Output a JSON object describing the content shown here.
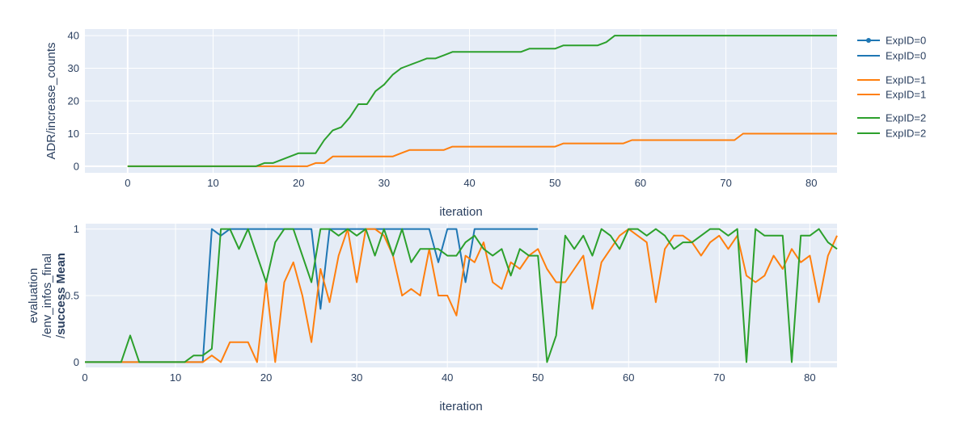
{
  "chart_data": [
    {
      "type": "line",
      "xlabel": "iteration",
      "ylabel": "ADR/increase_counts",
      "xlim": [
        -5,
        83
      ],
      "ylim": [
        -2,
        42
      ],
      "xticks": [
        0,
        10,
        20,
        30,
        40,
        50,
        60,
        70,
        80
      ],
      "yticks": [
        0,
        10,
        20,
        30,
        40
      ],
      "grid": true,
      "series": [
        {
          "name": "ExpID=1",
          "color": "#ff7f0e",
          "x": [
            0,
            20,
            21,
            22,
            23,
            24,
            30,
            31,
            32,
            33,
            37,
            38,
            50,
            51,
            58,
            59,
            71,
            72,
            83
          ],
          "y": [
            0,
            0,
            0,
            1,
            1,
            3,
            3,
            3,
            4,
            5,
            5,
            6,
            6,
            7,
            7,
            8,
            8,
            10,
            10
          ]
        },
        {
          "name": "ExpID=2",
          "color": "#2ca02c",
          "x": [
            0,
            15,
            16,
            17,
            20,
            21,
            22,
            23,
            24,
            25,
            26,
            27,
            28,
            29,
            30,
            31,
            32,
            33,
            34,
            35,
            36,
            37,
            38,
            39,
            40,
            41,
            42,
            43,
            44,
            45,
            46,
            47,
            48,
            49,
            50,
            51,
            52,
            53,
            54,
            55,
            56,
            57,
            83
          ],
          "y": [
            0,
            0,
            1,
            1,
            4,
            4,
            4,
            8,
            11,
            12,
            15,
            19,
            19,
            23,
            25,
            28,
            30,
            31,
            32,
            33,
            33,
            34,
            35,
            35,
            35,
            35,
            35,
            35,
            35,
            35,
            35,
            36,
            36,
            36,
            36,
            37,
            37,
            37,
            37,
            37,
            38,
            40,
            40
          ]
        }
      ]
    },
    {
      "type": "line",
      "xlabel": "iteration",
      "ylabel_lines": [
        "evaluation",
        "/env_infos_final"
      ],
      "ylabel_prefix": "/",
      "ylabel_bold": "success Mean",
      "xlim": [
        0,
        83
      ],
      "ylim": [
        -0.04,
        1.04
      ],
      "xticks": [
        0,
        10,
        20,
        30,
        40,
        50,
        60,
        70,
        80
      ],
      "yticks": [
        0,
        0.5,
        1
      ],
      "ytick_labels": [
        "0",
        "0.5",
        "1"
      ],
      "grid": true,
      "series": [
        {
          "name": "ExpID=0",
          "color": "#1f77b4",
          "x": [
            0,
            1,
            2,
            3,
            4,
            5,
            6,
            7,
            8,
            9,
            10,
            11,
            12,
            13,
            14,
            15,
            16,
            17,
            18,
            19,
            20,
            21,
            22,
            23,
            24,
            25,
            26,
            27,
            28,
            29,
            30,
            31,
            32,
            33,
            34,
            35,
            36,
            37,
            38,
            39,
            40,
            41,
            42,
            43,
            44,
            45,
            46,
            47,
            48,
            49,
            50
          ],
          "y": [
            0,
            0,
            0,
            0,
            0,
            0,
            0,
            0,
            0,
            0,
            0,
            0,
            0,
            0,
            1,
            0.95,
            1,
            1,
            1,
            1,
            1,
            1,
            1,
            1,
            1,
            1,
            0.4,
            1,
            1,
            1,
            1,
            1,
            1,
            1,
            1,
            1,
            1,
            1,
            1,
            0.75,
            1,
            1,
            0.6,
            1,
            1,
            1,
            1,
            1,
            1,
            1,
            1
          ]
        },
        {
          "name": "ExpID=1",
          "color": "#ff7f0e",
          "x": [
            0,
            1,
            2,
            3,
            4,
            5,
            6,
            7,
            8,
            9,
            10,
            11,
            12,
            13,
            14,
            15,
            16,
            17,
            18,
            19,
            20,
            21,
            22,
            23,
            24,
            25,
            26,
            27,
            28,
            29,
            30,
            31,
            32,
            33,
            34,
            35,
            36,
            37,
            38,
            39,
            40,
            41,
            42,
            43,
            44,
            45,
            46,
            47,
            48,
            49,
            50,
            51,
            52,
            53,
            54,
            55,
            56,
            57,
            58,
            59,
            60,
            61,
            62,
            63,
            64,
            65,
            66,
            67,
            68,
            69,
            70,
            71,
            72,
            73,
            74,
            75,
            76,
            77,
            78,
            79,
            80,
            81,
            82,
            83
          ],
          "y": [
            0,
            0,
            0,
            0,
            0,
            0,
            0,
            0,
            0,
            0,
            0,
            0,
            0,
            0,
            0.05,
            0,
            0.15,
            0.15,
            0.15,
            0,
            0.6,
            0,
            0.6,
            0.75,
            0.5,
            0.15,
            0.7,
            0.45,
            0.8,
            1,
            0.6,
            1,
            1,
            0.95,
            0.8,
            0.5,
            0.55,
            0.5,
            0.85,
            0.5,
            0.5,
            0.35,
            0.8,
            0.75,
            0.9,
            0.6,
            0.55,
            0.75,
            0.7,
            0.8,
            0.85,
            0.7,
            0.6,
            0.6,
            0.7,
            0.8,
            0.4,
            0.75,
            0.85,
            0.95,
            1,
            0.95,
            0.9,
            0.45,
            0.85,
            0.95,
            0.95,
            0.9,
            0.8,
            0.9,
            0.95,
            0.85,
            0.95,
            0.65,
            0.6,
            0.65,
            0.8,
            0.7,
            0.85,
            0.75,
            0.8,
            0.45,
            0.8,
            0.95
          ]
        },
        {
          "name": "ExpID=2",
          "color": "#2ca02c",
          "x": [
            0,
            1,
            2,
            3,
            4,
            5,
            6,
            7,
            8,
            9,
            10,
            11,
            12,
            13,
            14,
            15,
            16,
            17,
            18,
            19,
            20,
            21,
            22,
            23,
            24,
            25,
            26,
            27,
            28,
            29,
            30,
            31,
            32,
            33,
            34,
            35,
            36,
            37,
            38,
            39,
            40,
            41,
            42,
            43,
            44,
            45,
            46,
            47,
            48,
            49,
            50,
            51,
            52,
            53,
            54,
            55,
            56,
            57,
            58,
            59,
            60,
            61,
            62,
            63,
            64,
            65,
            66,
            67,
            68,
            69,
            70,
            71,
            72,
            73,
            74,
            75,
            76,
            77,
            78,
            79,
            80,
            81,
            82,
            83
          ],
          "y": [
            0,
            0,
            0,
            0,
            0,
            0.2,
            0,
            0,
            0,
            0,
            0,
            0,
            0.05,
            0.05,
            0.1,
            1,
            1,
            0.85,
            1,
            0.8,
            0.6,
            0.9,
            1,
            1,
            0.8,
            0.6,
            1,
            1,
            0.95,
            1,
            0.95,
            1,
            0.8,
            1,
            0.8,
            1,
            0.75,
            0.85,
            0.85,
            0.85,
            0.8,
            0.8,
            0.9,
            0.95,
            0.85,
            0.8,
            0.85,
            0.65,
            0.85,
            0.8,
            0.8,
            0,
            0.2,
            0.95,
            0.85,
            0.95,
            0.8,
            1,
            0.95,
            0.85,
            1,
            1,
            0.95,
            1,
            0.95,
            0.85,
            0.9,
            0.9,
            0.95,
            1,
            1,
            0.95,
            1,
            0,
            1,
            0.95,
            0.95,
            0.95,
            0,
            0.95,
            0.95,
            1,
            0.9,
            0.85
          ]
        }
      ]
    }
  ],
  "legend": {
    "placement": "top-right",
    "entries": [
      {
        "label": "ExpID=0",
        "color": "#1f77b4",
        "marker": true
      },
      {
        "label": "ExpID=0",
        "color": "#1f77b4",
        "marker": false
      },
      {
        "label": "ExpID=1",
        "color": "#ff7f0e",
        "marker": false
      },
      {
        "label": "ExpID=1",
        "color": "#ff7f0e",
        "marker": false
      },
      {
        "label": "ExpID=2",
        "color": "#2ca02c",
        "marker": false
      },
      {
        "label": "ExpID=2",
        "color": "#2ca02c",
        "marker": false
      }
    ]
  },
  "colors": {
    "plot_bg": "#e5ecf6",
    "grid": "#ffffff",
    "text": "#2a3f5f"
  }
}
